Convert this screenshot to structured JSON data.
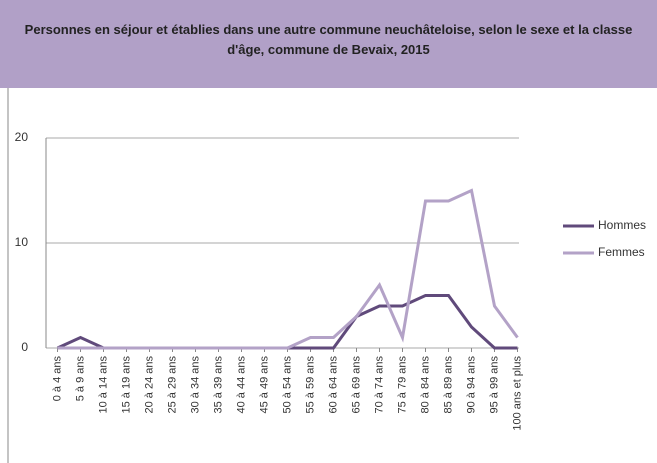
{
  "chart_data": {
    "type": "line",
    "title": "Personnes en séjour et établies dans une autre commune neuchâteloise, selon le sexe et la classe d'âge, commune de Bevaix, 2015",
    "categories": [
      "0 à 4 ans",
      "5 à 9 ans",
      "10 à 14 ans",
      "15 à 19 ans",
      "20 à 24 ans",
      "25 à 29 ans",
      "30 à 34 ans",
      "35 à 39 ans",
      "40 à 44 ans",
      "45 à 49 ans",
      "50 à 54 ans",
      "55 à 59 ans",
      "60 à 64 ans",
      "65 à 69 ans",
      "70 à 74 ans",
      "75 à 79 ans",
      "80 à 84 ans",
      "85 à 89 ans",
      "90 à 94 ans",
      "95 à 99 ans",
      "100 ans et plus"
    ],
    "series": [
      {
        "name": "Hommes",
        "color": "#604a7b",
        "values": [
          0,
          1,
          0,
          0,
          0,
          0,
          0,
          0,
          0,
          0,
          0,
          0,
          0,
          3,
          4,
          4,
          5,
          5,
          2,
          0,
          0
        ]
      },
      {
        "name": "Femmes",
        "color": "#b3a2c7",
        "values": [
          0,
          0,
          0,
          0,
          0,
          0,
          0,
          0,
          0,
          0,
          0,
          1,
          1,
          3,
          6,
          1,
          14,
          14,
          15,
          4,
          1
        ]
      }
    ],
    "ylim": [
      0,
      20
    ],
    "yticks": [
      0,
      10,
      20
    ],
    "grid": true,
    "legend": "right"
  }
}
